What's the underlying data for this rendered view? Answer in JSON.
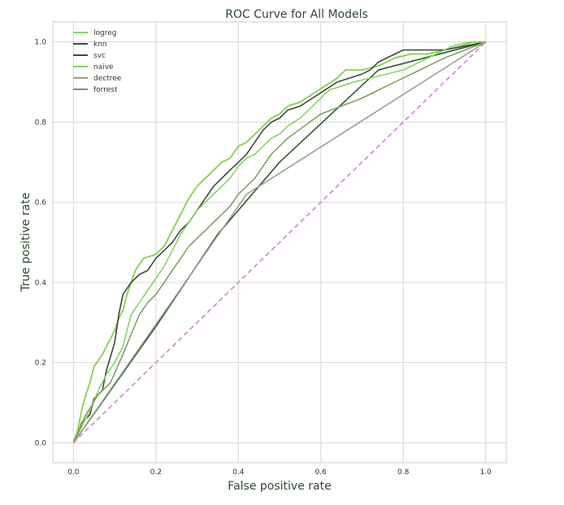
{
  "chart_data": {
    "type": "line",
    "title": "ROC Curve for All Models",
    "xlabel": "False positive rate",
    "ylabel": "True positive rate",
    "xlim": [
      -0.05,
      1.05
    ],
    "ylim": [
      -0.05,
      1.05
    ],
    "xticks": [
      "0.0",
      "0.2",
      "0.4",
      "0.6",
      "0.8",
      "1.0"
    ],
    "yticks": [
      "0.0",
      "0.2",
      "0.4",
      "0.6",
      "0.8",
      "1.0"
    ],
    "grid": true,
    "legend_position": "top-left",
    "series": [
      {
        "name": "logreg",
        "color": "#8fd35a",
        "width": 2,
        "points": [
          [
            0,
            0
          ],
          [
            0.01,
            0.03
          ],
          [
            0.02,
            0.08
          ],
          [
            0.03,
            0.12
          ],
          [
            0.04,
            0.15
          ],
          [
            0.05,
            0.19
          ],
          [
            0.07,
            0.22
          ],
          [
            0.09,
            0.26
          ],
          [
            0.1,
            0.28
          ],
          [
            0.11,
            0.31
          ],
          [
            0.12,
            0.33
          ],
          [
            0.13,
            0.37
          ],
          [
            0.14,
            0.4
          ],
          [
            0.15,
            0.43
          ],
          [
            0.17,
            0.46
          ],
          [
            0.2,
            0.47
          ],
          [
            0.22,
            0.49
          ],
          [
            0.24,
            0.53
          ],
          [
            0.26,
            0.57
          ],
          [
            0.28,
            0.61
          ],
          [
            0.3,
            0.64
          ],
          [
            0.32,
            0.66
          ],
          [
            0.34,
            0.68
          ],
          [
            0.36,
            0.7
          ],
          [
            0.38,
            0.71
          ],
          [
            0.4,
            0.74
          ],
          [
            0.42,
            0.75
          ],
          [
            0.44,
            0.77
          ],
          [
            0.46,
            0.79
          ],
          [
            0.48,
            0.81
          ],
          [
            0.5,
            0.82
          ],
          [
            0.52,
            0.84
          ],
          [
            0.55,
            0.85
          ],
          [
            0.58,
            0.87
          ],
          [
            0.61,
            0.89
          ],
          [
            0.64,
            0.91
          ],
          [
            0.66,
            0.93
          ],
          [
            0.7,
            0.93
          ],
          [
            0.74,
            0.94
          ],
          [
            0.78,
            0.96
          ],
          [
            0.82,
            0.97
          ],
          [
            0.86,
            0.97
          ],
          [
            0.9,
            0.98
          ],
          [
            0.94,
            0.99
          ],
          [
            0.97,
            1.0
          ],
          [
            1.0,
            1.0
          ]
        ]
      },
      {
        "name": "knn",
        "color": "#3a4a3c",
        "width": 1.6,
        "points": [
          [
            0,
            0
          ],
          [
            0.01,
            0.02
          ],
          [
            0.02,
            0.05
          ],
          [
            0.04,
            0.07
          ],
          [
            0.05,
            0.11
          ],
          [
            0.07,
            0.13
          ],
          [
            0.08,
            0.18
          ],
          [
            0.1,
            0.25
          ],
          [
            0.11,
            0.32
          ],
          [
            0.12,
            0.37
          ],
          [
            0.14,
            0.4
          ],
          [
            0.16,
            0.42
          ],
          [
            0.18,
            0.43
          ],
          [
            0.2,
            0.46
          ],
          [
            0.22,
            0.48
          ],
          [
            0.24,
            0.5
          ],
          [
            0.26,
            0.53
          ],
          [
            0.28,
            0.55
          ],
          [
            0.3,
            0.58
          ],
          [
            0.32,
            0.61
          ],
          [
            0.34,
            0.64
          ],
          [
            0.36,
            0.66
          ],
          [
            0.38,
            0.68
          ],
          [
            0.4,
            0.7
          ],
          [
            0.42,
            0.72
          ],
          [
            0.44,
            0.75
          ],
          [
            0.46,
            0.78
          ],
          [
            0.48,
            0.8
          ],
          [
            0.5,
            0.81
          ],
          [
            0.52,
            0.83
          ],
          [
            0.55,
            0.84
          ],
          [
            0.58,
            0.86
          ],
          [
            0.61,
            0.88
          ],
          [
            0.64,
            0.9
          ],
          [
            0.67,
            0.91
          ],
          [
            0.7,
            0.92
          ],
          [
            0.72,
            0.93
          ],
          [
            0.74,
            0.95
          ],
          [
            0.76,
            0.96
          ],
          [
            0.78,
            0.97
          ],
          [
            0.8,
            0.98
          ],
          [
            0.85,
            0.98
          ],
          [
            0.9,
            0.98
          ],
          [
            0.95,
            0.99
          ],
          [
            1.0,
            1.0
          ]
        ]
      },
      {
        "name": "svc",
        "color": "#2f5a2f",
        "width": 1.6,
        "points": [
          [
            0,
            0
          ],
          [
            0.2,
            0.29
          ],
          [
            0.35,
            0.52
          ],
          [
            0.5,
            0.7
          ],
          [
            0.74,
            0.93
          ],
          [
            1.0,
            1.0
          ]
        ]
      },
      {
        "name": "naive",
        "color": "#7cd65a",
        "width": 1.5,
        "points": [
          [
            0,
            0
          ],
          [
            0.02,
            0.04
          ],
          [
            0.04,
            0.08
          ],
          [
            0.06,
            0.13
          ],
          [
            0.08,
            0.17
          ],
          [
            0.1,
            0.2
          ],
          [
            0.12,
            0.24
          ],
          [
            0.13,
            0.28
          ],
          [
            0.14,
            0.32
          ],
          [
            0.16,
            0.35
          ],
          [
            0.18,
            0.38
          ],
          [
            0.2,
            0.41
          ],
          [
            0.22,
            0.44
          ],
          [
            0.24,
            0.48
          ],
          [
            0.26,
            0.52
          ],
          [
            0.28,
            0.55
          ],
          [
            0.3,
            0.58
          ],
          [
            0.32,
            0.6
          ],
          [
            0.34,
            0.62
          ],
          [
            0.36,
            0.64
          ],
          [
            0.38,
            0.66
          ],
          [
            0.4,
            0.69
          ],
          [
            0.42,
            0.71
          ],
          [
            0.44,
            0.72
          ],
          [
            0.46,
            0.74
          ],
          [
            0.48,
            0.76
          ],
          [
            0.5,
            0.77
          ],
          [
            0.52,
            0.79
          ],
          [
            0.55,
            0.81
          ],
          [
            0.58,
            0.84
          ],
          [
            0.6,
            0.86
          ],
          [
            0.62,
            0.88
          ],
          [
            0.65,
            0.89
          ],
          [
            0.68,
            0.9
          ],
          [
            0.72,
            0.91
          ],
          [
            0.76,
            0.92
          ],
          [
            0.8,
            0.93
          ],
          [
            0.84,
            0.95
          ],
          [
            0.88,
            0.97
          ],
          [
            0.92,
            0.99
          ],
          [
            0.96,
            1.0
          ],
          [
            1.0,
            1.0
          ]
        ]
      },
      {
        "name": "dectree",
        "color": "#959e88",
        "width": 1.5,
        "points": [
          [
            0,
            0
          ],
          [
            0.42,
            0.62
          ],
          [
            1.0,
            1.0
          ]
        ]
      },
      {
        "name": "forrest",
        "color": "#7c9a5c",
        "width": 1.5,
        "points": [
          [
            0,
            0
          ],
          [
            0.03,
            0.07
          ],
          [
            0.06,
            0.12
          ],
          [
            0.09,
            0.15
          ],
          [
            0.12,
            0.22
          ],
          [
            0.14,
            0.27
          ],
          [
            0.16,
            0.32
          ],
          [
            0.18,
            0.35
          ],
          [
            0.2,
            0.37
          ],
          [
            0.22,
            0.4
          ],
          [
            0.24,
            0.43
          ],
          [
            0.26,
            0.46
          ],
          [
            0.28,
            0.49
          ],
          [
            0.3,
            0.51
          ],
          [
            0.32,
            0.53
          ],
          [
            0.34,
            0.55
          ],
          [
            0.36,
            0.57
          ],
          [
            0.38,
            0.59
          ],
          [
            0.4,
            0.62
          ],
          [
            0.42,
            0.64
          ],
          [
            0.44,
            0.66
          ],
          [
            0.46,
            0.69
          ],
          [
            0.48,
            0.72
          ],
          [
            0.5,
            0.74
          ],
          [
            0.52,
            0.76
          ],
          [
            0.56,
            0.79
          ],
          [
            0.6,
            0.82
          ],
          [
            0.65,
            0.84
          ],
          [
            0.7,
            0.86
          ],
          [
            0.74,
            0.88
          ],
          [
            0.78,
            0.9
          ],
          [
            0.82,
            0.92
          ],
          [
            0.86,
            0.94
          ],
          [
            0.9,
            0.96
          ],
          [
            0.95,
            0.98
          ],
          [
            1.0,
            1.0
          ]
        ]
      }
    ],
    "reference_line": {
      "points": [
        [
          0,
          0
        ],
        [
          1,
          1
        ]
      ],
      "color": "#da8bd6",
      "dashed": true
    }
  }
}
